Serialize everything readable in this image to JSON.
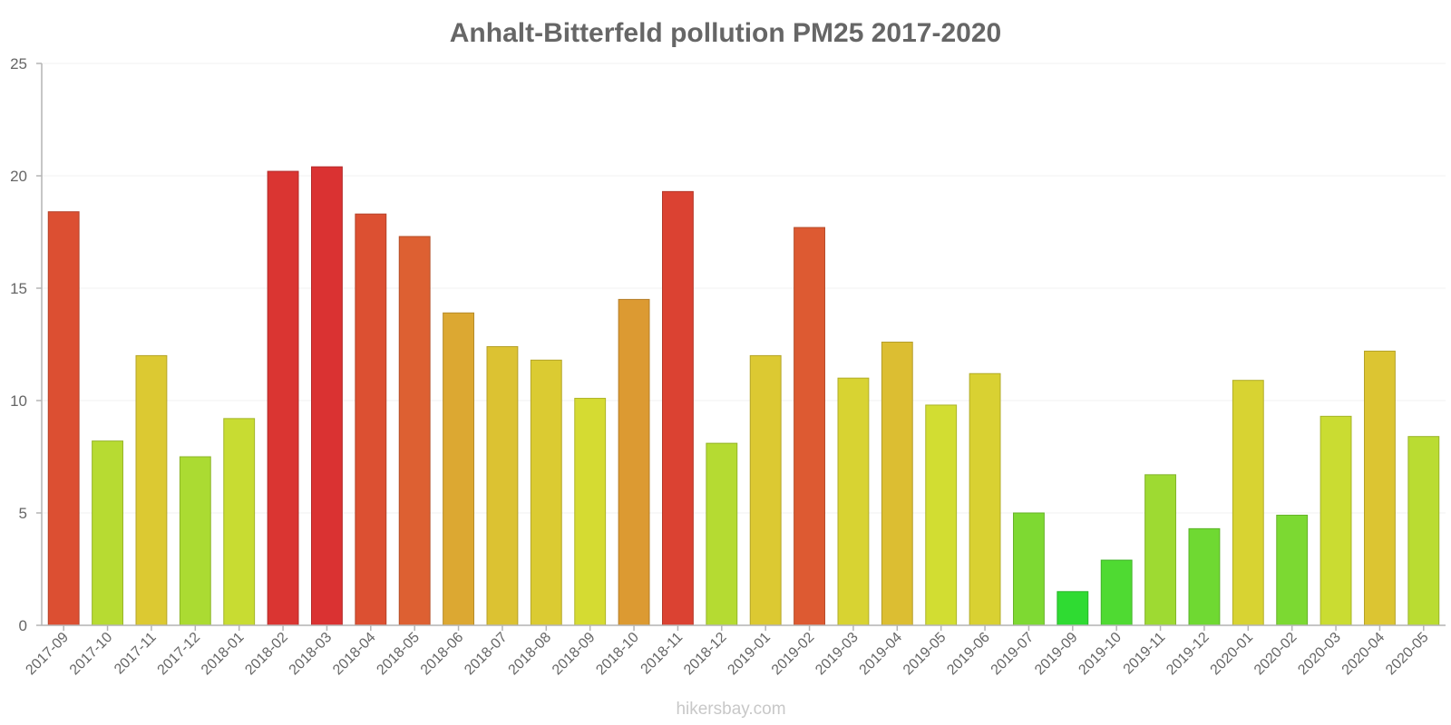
{
  "chart_data": {
    "type": "bar",
    "title": "Anhalt-Bitterfeld pollution PM25 2017-2020",
    "xlabel": "",
    "ylabel": "",
    "ylim": [
      0,
      25
    ],
    "yticks": [
      0,
      5,
      10,
      15,
      20,
      25
    ],
    "grid": true,
    "categories": [
      "2017-09",
      "2017-10",
      "2017-11",
      "2017-12",
      "2018-01",
      "2018-02",
      "2018-03",
      "2018-04",
      "2018-05",
      "2018-06",
      "2018-07",
      "2018-08",
      "2018-09",
      "2018-10",
      "2018-11",
      "2018-12",
      "2019-01",
      "2019-02",
      "2019-03",
      "2019-04",
      "2019-05",
      "2019-06",
      "2019-07",
      "2019-09",
      "2019-10",
      "2019-11",
      "2019-12",
      "2020-01",
      "2020-02",
      "2020-03",
      "2020-04",
      "2020-05"
    ],
    "values": [
      18.4,
      8.2,
      12.0,
      7.5,
      9.2,
      20.2,
      20.4,
      18.3,
      17.3,
      13.9,
      12.4,
      11.8,
      10.1,
      14.5,
      19.3,
      8.1,
      12.0,
      17.7,
      11.0,
      12.6,
      9.8,
      11.2,
      5.0,
      1.5,
      2.9,
      6.7,
      4.3,
      10.9,
      4.9,
      9.3,
      12.2,
      8.4
    ]
  },
  "credit": "hikersbay.com",
  "colors": {
    "text": "#666666",
    "grid": "#f1f1f1",
    "axis": "#b4b4b4",
    "scale": [
      "#2fdb32",
      "#5fd932",
      "#8ed932",
      "#b0db32",
      "#d4dd32",
      "#dcc932",
      "#dca432",
      "#de7232",
      "#dc5032",
      "#da3232"
    ]
  }
}
